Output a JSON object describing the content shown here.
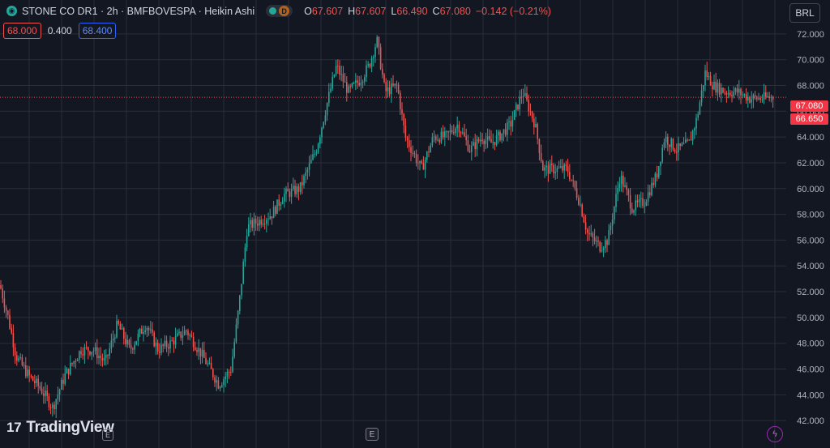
{
  "header": {
    "symbol": "STONE CO DR1 · 2h · BMFBOVESPA · Heikin Ashi",
    "d_badge": "D",
    "ohlc": [
      {
        "k": "O",
        "v": "67.607"
      },
      {
        "k": "H",
        "v": "67.607"
      },
      {
        "k": "L",
        "v": "66.490"
      },
      {
        "k": "C",
        "v": "67.080"
      }
    ],
    "change": "−0.142 (−0.21%)"
  },
  "order_row": {
    "sell": "68.000",
    "spread": "0.400",
    "buy": "68.400"
  },
  "currency": "BRL",
  "price_tags": {
    "last": "67.080",
    "low": "66.650"
  },
  "brand": "TradingView",
  "bottom_marker": "E",
  "colors": {
    "bg": "#131722",
    "up": "#26a69a",
    "down": "#ef5350",
    "grid": "#2a2e39",
    "text": "#b2b5be"
  },
  "icons": [
    "eye-icon",
    "status-dot-icon",
    "d-badge-icon",
    "tradingview-logo-icon",
    "earnings-e-icon",
    "lightning-icon"
  ],
  "chart_data": {
    "type": "candlestick",
    "title": "STONE CO DR1 · 2h · BMFBOVESPA · Heikin Ashi",
    "ylim": [
      40,
      74
    ],
    "y_ticks": [
      "42.000",
      "44.000",
      "46.000",
      "48.000",
      "50.000",
      "52.000",
      "54.000",
      "56.000",
      "58.000",
      "60.000",
      "62.000",
      "64.000",
      "66.000",
      "68.000",
      "70.000",
      "72.000"
    ],
    "y_tick_values": [
      42,
      44,
      46,
      48,
      50,
      52,
      54,
      56,
      58,
      60,
      62,
      64,
      66,
      68,
      70,
      72
    ],
    "last_price": 67.08,
    "anchors": [
      [
        0,
        52.5
      ],
      [
        10,
        50
      ],
      [
        20,
        47
      ],
      [
        35,
        45.5
      ],
      [
        50,
        44.5
      ],
      [
        65,
        43
      ],
      [
        80,
        45.5
      ],
      [
        100,
        47.5
      ],
      [
        115,
        47.5
      ],
      [
        130,
        46.5
      ],
      [
        145,
        49.5
      ],
      [
        160,
        47.5
      ],
      [
        180,
        49.5
      ],
      [
        195,
        47.5
      ],
      [
        210,
        48
      ],
      [
        230,
        49
      ],
      [
        250,
        47
      ],
      [
        270,
        44.8
      ],
      [
        285,
        46
      ],
      [
        295,
        51
      ],
      [
        305,
        57
      ],
      [
        320,
        57.5
      ],
      [
        335,
        58
      ],
      [
        350,
        59.5
      ],
      [
        370,
        60
      ],
      [
        390,
        63
      ],
      [
        405,
        67
      ],
      [
        415,
        69.5
      ],
      [
        430,
        67.5
      ],
      [
        445,
        68.5
      ],
      [
        455,
        69.5
      ],
      [
        465,
        71.5
      ],
      [
        475,
        67.5
      ],
      [
        490,
        68
      ],
      [
        500,
        64
      ],
      [
        520,
        61.5
      ],
      [
        535,
        64
      ],
      [
        550,
        64
      ],
      [
        565,
        65
      ],
      [
        580,
        63
      ],
      [
        595,
        64
      ],
      [
        605,
        63.5
      ],
      [
        615,
        64
      ],
      [
        630,
        65
      ],
      [
        645,
        67.5
      ],
      [
        660,
        65
      ],
      [
        670,
        61.5
      ],
      [
        685,
        61.5
      ],
      [
        700,
        61.5
      ],
      [
        715,
        59
      ],
      [
        725,
        56.5
      ],
      [
        740,
        55.5
      ],
      [
        750,
        56
      ],
      [
        765,
        61
      ],
      [
        780,
        58.5
      ],
      [
        795,
        59
      ],
      [
        810,
        61
      ],
      [
        820,
        64
      ],
      [
        835,
        63
      ],
      [
        850,
        63.5
      ],
      [
        860,
        65.5
      ],
      [
        870,
        69
      ],
      [
        880,
        68
      ],
      [
        895,
        67.5
      ],
      [
        910,
        67.5
      ],
      [
        925,
        67
      ],
      [
        940,
        67
      ],
      [
        950,
        67.08
      ]
    ]
  }
}
